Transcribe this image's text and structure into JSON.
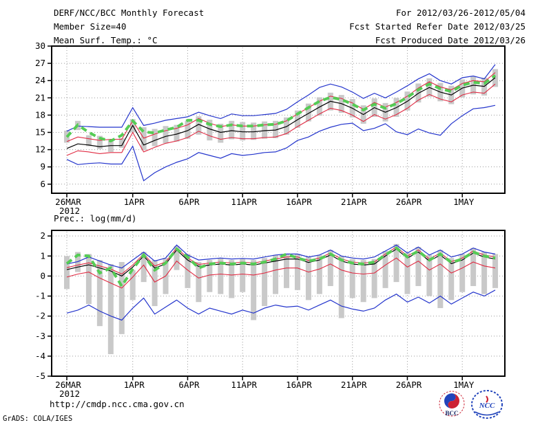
{
  "header": {
    "left": [
      "DERF/NCC/BCC Monthly Forecast",
      "Member Size=40",
      "Mean Surf. Temp.: °C"
    ],
    "right": [
      "For 2012/03/26-2012/05/04",
      "Fcst Started Refer Date 2012/03/25",
      "Fcst Produced Date 2012/03/26"
    ]
  },
  "footer": {
    "url": "http://cmdp.ncc.cma.gov.cn",
    "credit": "GrADS: COLA/IGES",
    "logo_bcc": "BCC",
    "logo_ncc": "NCC"
  },
  "colors": {
    "background": "#ffffff",
    "frame": "#000000",
    "grid": "#999999",
    "spread_bar": "#c9c9c9",
    "ensemble_blue": "#2233cc",
    "spread_red": "#e02840",
    "mean_black": "#000000",
    "observation_green": "#55cc55",
    "logo_red": "#cc2233",
    "logo_blue": "#2244bb"
  },
  "chart_data": [
    {
      "type": "line",
      "panel_name": "temperature-panel",
      "title": "Mean Surf. Temp.: °C",
      "n_days": 40,
      "x_tick_labels": [
        "26MAR",
        "1APR",
        "6APR",
        "11APR",
        "16APR",
        "21APR",
        "26APR",
        "1MAY"
      ],
      "x_tick_days": [
        0,
        6,
        11,
        16,
        21,
        26,
        31,
        36
      ],
      "x_sub_label": "2012",
      "ylim": [
        4.42,
        30
      ],
      "y_ticks": [
        30,
        27,
        24,
        21,
        18,
        15,
        12,
        9,
        6
      ],
      "series": [
        {
          "name": "ensemble-max",
          "color": "#2233cc",
          "width": 1.2,
          "values": [
            15.2,
            16.1,
            16.0,
            15.9,
            15.9,
            15.9,
            19.3,
            16.2,
            16.6,
            17.1,
            17.4,
            17.7,
            18.5,
            17.9,
            17.4,
            18.2,
            17.9,
            17.9,
            18.1,
            18.3,
            19.0,
            20.3,
            21.5,
            22.8,
            23.4,
            22.9,
            22.0,
            20.9,
            21.8,
            21.0,
            22.0,
            23.1,
            24.3,
            25.2,
            24.0,
            23.4,
            24.5,
            24.8,
            24.3,
            26.8
          ]
        },
        {
          "name": "upper-spread",
          "color": "#e02840",
          "width": 1.1,
          "values": [
            13.4,
            14.2,
            13.9,
            13.6,
            13.8,
            13.8,
            17.0,
            14.0,
            14.7,
            15.3,
            15.7,
            16.3,
            17.4,
            16.6,
            16.0,
            16.3,
            16.1,
            16.1,
            16.3,
            16.4,
            17.0,
            18.2,
            19.3,
            20.4,
            21.3,
            20.9,
            20.1,
            19.0,
            20.2,
            19.4,
            20.2,
            21.3,
            22.7,
            23.8,
            22.9,
            22.4,
            23.5,
            24.0,
            23.8,
            25.4
          ]
        },
        {
          "name": "ensemble-mean",
          "color": "#000000",
          "width": 1.2,
          "values": [
            12.2,
            13.0,
            12.8,
            12.5,
            12.7,
            12.7,
            16.2,
            12.8,
            13.6,
            14.3,
            14.7,
            15.3,
            16.4,
            15.6,
            15.0,
            15.3,
            15.1,
            15.1,
            15.3,
            15.4,
            16.0,
            17.2,
            18.3,
            19.4,
            20.4,
            20.0,
            19.2,
            18.1,
            19.3,
            18.5,
            19.3,
            20.4,
            21.8,
            22.8,
            22.0,
            21.5,
            22.7,
            23.2,
            23.0,
            24.5
          ]
        },
        {
          "name": "lower-spread",
          "color": "#e02840",
          "width": 1.1,
          "values": [
            11.0,
            11.8,
            11.6,
            11.3,
            11.5,
            11.5,
            15.0,
            11.6,
            12.4,
            13.1,
            13.5,
            14.1,
            15.2,
            14.4,
            13.8,
            14.1,
            13.9,
            13.9,
            14.1,
            14.2,
            14.8,
            16.0,
            17.1,
            18.2,
            19.2,
            18.8,
            18.0,
            16.9,
            18.1,
            17.3,
            18.1,
            19.2,
            20.6,
            21.6,
            20.8,
            20.3,
            21.5,
            22.0,
            21.8,
            23.4
          ]
        },
        {
          "name": "ensemble-min",
          "color": "#2233cc",
          "width": 1.2,
          "values": [
            10.3,
            9.4,
            9.6,
            9.7,
            9.5,
            9.5,
            12.6,
            6.6,
            8.0,
            9.0,
            9.8,
            10.4,
            11.5,
            11.0,
            10.5,
            11.3,
            11.0,
            11.2,
            11.5,
            11.6,
            12.3,
            13.6,
            14.2,
            15.2,
            15.9,
            16.4,
            16.6,
            15.3,
            15.7,
            16.5,
            15.1,
            14.6,
            15.6,
            14.9,
            14.5,
            16.5,
            17.9,
            19.1,
            19.3,
            19.7
          ]
        },
        {
          "name": "observation",
          "color": "#55cc55",
          "width": 4,
          "dash": "9 6",
          "values": [
            14.2,
            16.3,
            15.0,
            14.0,
            13.5,
            14.5,
            17.0,
            15.1,
            14.9,
            15.4,
            15.9,
            17.1,
            17.1,
            16.4,
            16.0,
            16.3,
            16.1,
            16.1,
            16.3,
            16.4,
            17.0,
            18.2,
            19.3,
            20.4,
            21.1,
            20.7,
            19.9,
            18.9,
            19.9,
            19.2,
            20.0,
            21.1,
            22.4,
            23.4,
            22.6,
            22.1,
            23.2,
            23.7,
            23.5,
            24.9
          ]
        }
      ],
      "bars": {
        "color": "#c9c9c9",
        "width": 8,
        "ranges": [
          [
            13.2,
            15.3
          ],
          [
            15.4,
            17.0
          ],
          [
            12.6,
            14.5
          ],
          [
            12.1,
            14.4
          ],
          [
            11.6,
            13.7
          ],
          [
            12.3,
            14.0
          ],
          [
            15.0,
            17.3
          ],
          [
            11.9,
            15.9
          ],
          [
            12.6,
            15.6
          ],
          [
            13.1,
            16.1
          ],
          [
            13.4,
            16.3
          ],
          [
            13.9,
            17.0
          ],
          [
            14.6,
            17.8
          ],
          [
            13.6,
            17.2
          ],
          [
            13.2,
            16.5
          ],
          [
            13.8,
            17.0
          ],
          [
            13.6,
            16.8
          ],
          [
            13.7,
            16.7
          ],
          [
            13.9,
            16.9
          ],
          [
            14.0,
            17.0
          ],
          [
            14.6,
            17.6
          ],
          [
            15.8,
            18.8
          ],
          [
            16.9,
            20.0
          ],
          [
            17.9,
            21.1
          ],
          [
            18.8,
            21.9
          ],
          [
            18.4,
            21.5
          ],
          [
            17.6,
            20.8
          ],
          [
            16.5,
            19.7
          ],
          [
            17.7,
            20.9
          ],
          [
            16.9,
            20.1
          ],
          [
            17.7,
            21.0
          ],
          [
            18.8,
            22.1
          ],
          [
            20.2,
            23.5
          ],
          [
            21.2,
            24.4
          ],
          [
            20.4,
            23.6
          ],
          [
            19.9,
            23.1
          ],
          [
            21.1,
            24.2
          ],
          [
            21.6,
            24.7
          ],
          [
            21.4,
            24.5
          ],
          [
            22.9,
            26.0
          ]
        ]
      }
    },
    {
      "type": "line",
      "panel_name": "precipitation-panel",
      "title": "Prec.: log(mm/d)",
      "n_days": 40,
      "x_tick_labels": [
        "26MAR",
        "1APR",
        "6APR",
        "11APR",
        "16APR",
        "21APR",
        "26APR",
        "1MAY"
      ],
      "x_tick_days": [
        0,
        6,
        11,
        16,
        21,
        26,
        31,
        36
      ],
      "x_sub_label": "2012",
      "ylim": [
        -5,
        2.28
      ],
      "y_ticks": [
        2,
        1,
        0,
        -1,
        -2,
        -3,
        -4,
        -5
      ],
      "series": [
        {
          "name": "ensemble-max",
          "color": "#2233cc",
          "width": 1.2,
          "values": [
            0.6,
            0.72,
            0.95,
            0.75,
            0.55,
            0.4,
            0.8,
            1.2,
            0.75,
            0.9,
            1.55,
            1.05,
            0.8,
            0.85,
            0.9,
            0.85,
            0.88,
            0.85,
            0.95,
            1.05,
            1.1,
            1.1,
            0.95,
            1.05,
            1.3,
            1.0,
            0.9,
            0.85,
            0.95,
            1.25,
            1.55,
            1.15,
            1.45,
            1.05,
            1.3,
            0.95,
            1.1,
            1.4,
            1.2,
            1.1
          ]
        },
        {
          "name": "upper-spread",
          "color": "#e02840",
          "width": 1.1,
          "values": [
            0.42,
            0.55,
            0.66,
            0.5,
            0.35,
            0.1,
            0.55,
            1.1,
            0.5,
            0.7,
            1.4,
            0.9,
            0.58,
            0.65,
            0.7,
            0.65,
            0.7,
            0.65,
            0.75,
            0.85,
            0.95,
            0.95,
            0.78,
            0.9,
            1.15,
            0.85,
            0.7,
            0.65,
            0.7,
            1.1,
            1.45,
            1.0,
            1.3,
            0.85,
            1.15,
            0.72,
            0.9,
            1.25,
            1.05,
            0.95
          ]
        },
        {
          "name": "ensemble-mean",
          "color": "#000000",
          "width": 1.2,
          "values": [
            0.32,
            0.45,
            0.56,
            0.4,
            0.25,
            0.0,
            0.45,
            1.0,
            0.4,
            0.6,
            1.3,
            0.8,
            0.48,
            0.55,
            0.6,
            0.55,
            0.6,
            0.55,
            0.65,
            0.75,
            0.85,
            0.85,
            0.68,
            0.8,
            1.05,
            0.75,
            0.6,
            0.55,
            0.6,
            1.0,
            1.35,
            0.9,
            1.2,
            0.75,
            1.05,
            0.62,
            0.8,
            1.15,
            0.95,
            0.85
          ]
        },
        {
          "name": "lower-spread",
          "color": "#e02840",
          "width": 1.1,
          "values": [
            -0.05,
            0.1,
            0.2,
            -0.1,
            -0.35,
            -0.6,
            -0.05,
            0.55,
            -0.3,
            0.0,
            0.75,
            0.3,
            -0.1,
            0.05,
            0.1,
            0.05,
            0.1,
            0.05,
            0.15,
            0.3,
            0.4,
            0.4,
            0.2,
            0.35,
            0.6,
            0.3,
            0.15,
            0.1,
            0.15,
            0.55,
            0.9,
            0.45,
            0.75,
            0.3,
            0.6,
            0.15,
            0.4,
            0.7,
            0.5,
            0.4
          ]
        },
        {
          "name": "ensemble-min",
          "color": "#2233cc",
          "width": 1.2,
          "values": [
            -1.85,
            -1.7,
            -1.45,
            -1.75,
            -2.0,
            -2.2,
            -1.6,
            -1.1,
            -1.9,
            -1.55,
            -1.2,
            -1.6,
            -1.9,
            -1.6,
            -1.75,
            -1.9,
            -1.7,
            -1.85,
            -1.6,
            -1.45,
            -1.55,
            -1.5,
            -1.7,
            -1.45,
            -1.2,
            -1.5,
            -1.65,
            -1.75,
            -1.6,
            -1.2,
            -0.9,
            -1.3,
            -1.05,
            -1.35,
            -1.0,
            -1.4,
            -1.1,
            -0.8,
            -1.0,
            -0.7
          ]
        },
        {
          "name": "observation",
          "color": "#55cc55",
          "width": 4,
          "dash": "9 6",
          "values": [
            0.62,
            1.05,
            1.0,
            0.15,
            0.4,
            -0.5,
            0.35,
            1.05,
            0.3,
            0.65,
            1.35,
            0.95,
            0.4,
            0.6,
            0.65,
            0.6,
            0.65,
            0.6,
            0.7,
            0.85,
            1.1,
            0.9,
            0.75,
            0.85,
            1.1,
            0.8,
            0.65,
            0.6,
            0.7,
            1.05,
            1.4,
            0.95,
            1.25,
            0.8,
            1.1,
            0.68,
            0.85,
            1.2,
            1.0,
            0.9
          ]
        }
      ],
      "bars": {
        "color": "#c9c9c9",
        "width": 8,
        "ranges": [
          [
            -0.65,
            1.0
          ],
          [
            0.2,
            1.2
          ],
          [
            -1.4,
            1.1
          ],
          [
            -2.5,
            0.8
          ],
          [
            -3.9,
            0.6
          ],
          [
            -2.9,
            0.7
          ],
          [
            -1.2,
            0.3
          ],
          [
            -0.3,
            1.2
          ],
          [
            -1.5,
            0.8
          ],
          [
            -0.9,
            0.9
          ],
          [
            0.3,
            1.5
          ],
          [
            -0.6,
            1.1
          ],
          [
            -1.3,
            0.7
          ],
          [
            -0.8,
            0.8
          ],
          [
            -0.9,
            0.9
          ],
          [
            -1.1,
            0.8
          ],
          [
            -0.8,
            0.85
          ],
          [
            -2.2,
            0.8
          ],
          [
            -1.5,
            0.9
          ],
          [
            -0.9,
            1.05
          ],
          [
            -0.6,
            1.1
          ],
          [
            -0.7,
            1.1
          ],
          [
            -1.2,
            0.95
          ],
          [
            -0.9,
            1.05
          ],
          [
            -0.5,
            1.3
          ],
          [
            -2.1,
            1.0
          ],
          [
            -1.1,
            0.85
          ],
          [
            -1.3,
            0.8
          ],
          [
            -1.1,
            0.85
          ],
          [
            -0.6,
            1.25
          ],
          [
            -0.3,
            1.6
          ],
          [
            -0.9,
            1.15
          ],
          [
            -0.5,
            1.45
          ],
          [
            -1.0,
            1.05
          ],
          [
            -1.6,
            1.3
          ],
          [
            -1.2,
            0.9
          ],
          [
            -0.8,
            1.1
          ],
          [
            -0.5,
            1.4
          ],
          [
            -0.9,
            1.2
          ],
          [
            -0.6,
            1.1
          ]
        ]
      }
    }
  ]
}
